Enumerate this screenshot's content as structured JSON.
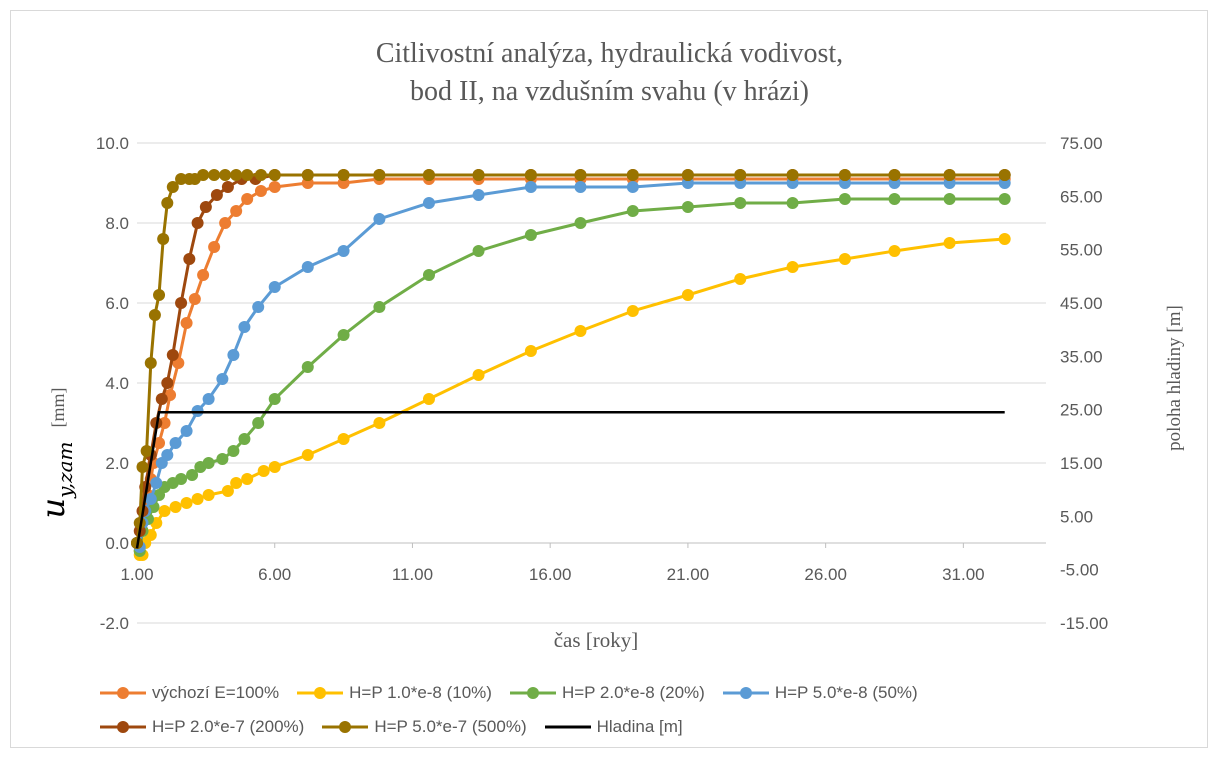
{
  "chart_data": {
    "type": "line",
    "title_lines": [
      "Citlivostní analýza, hydraulická vodivost,",
      "bod II, na vzdušním svahu (v hrázi)"
    ],
    "xlabel": "čas [roky]",
    "ylabel": "u",
    "ylabel_sub": "y,zam",
    "ylabel_unit": "[mm]",
    "y2label": "poloha hladiny [m]",
    "xlim": [
      1.0,
      34.0
    ],
    "ylim": [
      -2.0,
      10.0
    ],
    "y2lim": [
      -15.0,
      75.0
    ],
    "xticks": [
      "1.00",
      "6.00",
      "11.00",
      "16.00",
      "21.00",
      "26.00",
      "31.00"
    ],
    "yticks": [
      "-2.0",
      "0.0",
      "2.0",
      "4.0",
      "6.0",
      "8.0",
      "10.0"
    ],
    "y2ticks": [
      "-15.00",
      "-5.00",
      "5.00",
      "15.00",
      "25.00",
      "35.00",
      "45.00",
      "55.00",
      "65.00",
      "75.00"
    ],
    "grid": "horizontal",
    "legend_position": "bottom",
    "series": [
      {
        "name": "výchozí E=100%",
        "color": "#ed7d31",
        "axis": "left",
        "markers": true,
        "x": [
          1.0,
          1.1,
          1.2,
          1.3,
          1.4,
          1.5,
          1.6,
          1.8,
          2.0,
          2.2,
          2.5,
          2.8,
          3.1,
          3.4,
          3.8,
          4.2,
          4.6,
          5.0,
          5.5,
          6.0,
          7.2,
          8.5,
          9.8,
          11.6,
          13.4,
          15.3,
          17.1,
          19.0,
          21.0,
          22.9,
          24.8,
          26.7,
          28.5,
          30.5,
          32.5
        ],
        "y": [
          0.0,
          -0.2,
          0.3,
          0.8,
          1.2,
          1.6,
          2.0,
          2.5,
          3.0,
          3.7,
          4.5,
          5.5,
          6.1,
          6.7,
          7.4,
          8.0,
          8.3,
          8.6,
          8.8,
          8.9,
          9.0,
          9.0,
          9.1,
          9.1,
          9.1,
          9.1,
          9.1,
          9.1,
          9.1,
          9.1,
          9.1,
          9.1,
          9.1,
          9.1,
          9.1
        ]
      },
      {
        "name": "H=P 1.0*e-8 (10%)",
        "color": "#ffc000",
        "axis": "left",
        "markers": true,
        "x": [
          1.0,
          1.1,
          1.2,
          1.3,
          1.5,
          1.7,
          2.0,
          2.4,
          2.8,
          3.2,
          3.6,
          4.3,
          4.6,
          5.0,
          5.6,
          6.0,
          7.2,
          8.5,
          9.8,
          11.6,
          13.4,
          15.3,
          17.1,
          19.0,
          21.0,
          22.9,
          24.8,
          26.7,
          28.5,
          30.5,
          32.5
        ],
        "y": [
          0.0,
          -0.3,
          -0.3,
          0.0,
          0.2,
          0.5,
          0.8,
          0.9,
          1.0,
          1.1,
          1.2,
          1.3,
          1.5,
          1.6,
          1.8,
          1.9,
          2.2,
          2.6,
          3.0,
          3.6,
          4.2,
          4.8,
          5.3,
          5.8,
          6.2,
          6.6,
          6.9,
          7.1,
          7.3,
          7.5,
          7.6
        ]
      },
      {
        "name": "H=P 2.0*e-8 (20%)",
        "color": "#70ad47",
        "axis": "left",
        "markers": true,
        "x": [
          1.0,
          1.1,
          1.2,
          1.4,
          1.6,
          1.8,
          2.0,
          2.3,
          2.6,
          3.0,
          3.3,
          3.6,
          4.1,
          4.5,
          4.9,
          5.4,
          6.0,
          7.2,
          8.5,
          9.8,
          11.6,
          13.4,
          15.3,
          17.1,
          19.0,
          21.0,
          22.9,
          24.8,
          26.7,
          28.5,
          30.5,
          32.5
        ],
        "y": [
          0.0,
          -0.2,
          0.3,
          0.6,
          0.9,
          1.2,
          1.4,
          1.5,
          1.6,
          1.7,
          1.9,
          2.0,
          2.1,
          2.3,
          2.6,
          3.0,
          3.6,
          4.4,
          5.2,
          5.9,
          6.7,
          7.3,
          7.7,
          8.0,
          8.3,
          8.4,
          8.5,
          8.5,
          8.6,
          8.6,
          8.6,
          8.6
        ]
      },
      {
        "name": "H=P 5.0*e-8 (50%)",
        "color": "#5b9bd5",
        "axis": "left",
        "markers": true,
        "x": [
          1.0,
          1.1,
          1.2,
          1.3,
          1.5,
          1.7,
          1.9,
          2.1,
          2.4,
          2.8,
          3.2,
          3.6,
          4.1,
          4.5,
          4.9,
          5.4,
          6.0,
          7.2,
          8.5,
          9.8,
          11.6,
          13.4,
          15.3,
          17.1,
          19.0,
          21.0,
          22.9,
          24.8,
          26.7,
          28.5,
          30.5,
          32.5
        ],
        "y": [
          0.0,
          -0.1,
          0.5,
          0.8,
          1.1,
          1.5,
          2.0,
          2.2,
          2.5,
          2.8,
          3.3,
          3.6,
          4.1,
          4.7,
          5.4,
          5.9,
          6.4,
          6.9,
          7.3,
          8.1,
          8.5,
          8.7,
          8.9,
          8.9,
          8.9,
          9.0,
          9.0,
          9.0,
          9.0,
          9.0,
          9.0,
          9.0
        ],
        "x_note": ""
      },
      {
        "name": "H=P 2.0*e-7 (200%)",
        "color": "#9e480e",
        "axis": "left",
        "markers": true,
        "x": [
          1.0,
          1.1,
          1.2,
          1.3,
          1.5,
          1.7,
          1.9,
          2.1,
          2.3,
          2.6,
          2.9,
          3.2,
          3.5,
          3.9,
          4.3,
          4.8,
          5.3,
          6.0,
          7.2,
          8.5,
          9.8,
          11.6,
          13.4,
          15.3,
          17.1,
          19.0,
          21.0,
          22.9,
          24.8,
          26.7,
          28.5,
          30.5,
          32.5
        ],
        "y": [
          0.0,
          0.3,
          0.8,
          1.4,
          2.2,
          3.0,
          3.6,
          4.0,
          4.7,
          6.0,
          7.1,
          8.0,
          8.4,
          8.7,
          8.9,
          9.1,
          9.1,
          9.2,
          9.2,
          9.2,
          9.2,
          9.2,
          9.2,
          9.2,
          9.2,
          9.2,
          9.2,
          9.2,
          9.2,
          9.2,
          9.2,
          9.2,
          9.2
        ]
      },
      {
        "name": "H=P 5.0*e-7 (500%)",
        "color": "#997300",
        "axis": "left",
        "markers": true,
        "x": [
          1.0,
          1.1,
          1.2,
          1.35,
          1.5,
          1.65,
          1.8,
          1.95,
          2.1,
          2.3,
          2.6,
          2.9,
          3.1,
          3.4,
          3.8,
          4.2,
          4.6,
          5.0,
          5.5,
          6.0,
          7.2,
          8.5,
          9.8,
          11.6,
          13.4,
          15.3,
          17.1,
          19.0,
          21.0,
          22.9,
          24.8,
          26.7,
          28.5,
          30.5,
          32.5
        ],
        "y": [
          0.0,
          0.5,
          1.9,
          2.3,
          4.5,
          5.7,
          6.2,
          7.6,
          8.5,
          8.9,
          9.1,
          9.1,
          9.1,
          9.2,
          9.2,
          9.2,
          9.2,
          9.2,
          9.2,
          9.2,
          9.2,
          9.2,
          9.2,
          9.2,
          9.2,
          9.2,
          9.2,
          9.2,
          9.2,
          9.2,
          9.2,
          9.2,
          9.2,
          9.2,
          9.2
        ]
      },
      {
        "name": "Hladina [m]",
        "color": "#000000",
        "axis": "right",
        "markers": false,
        "x": [
          1.0,
          1.8,
          32.5
        ],
        "y": [
          -1.0,
          24.5,
          24.5
        ]
      }
    ]
  }
}
